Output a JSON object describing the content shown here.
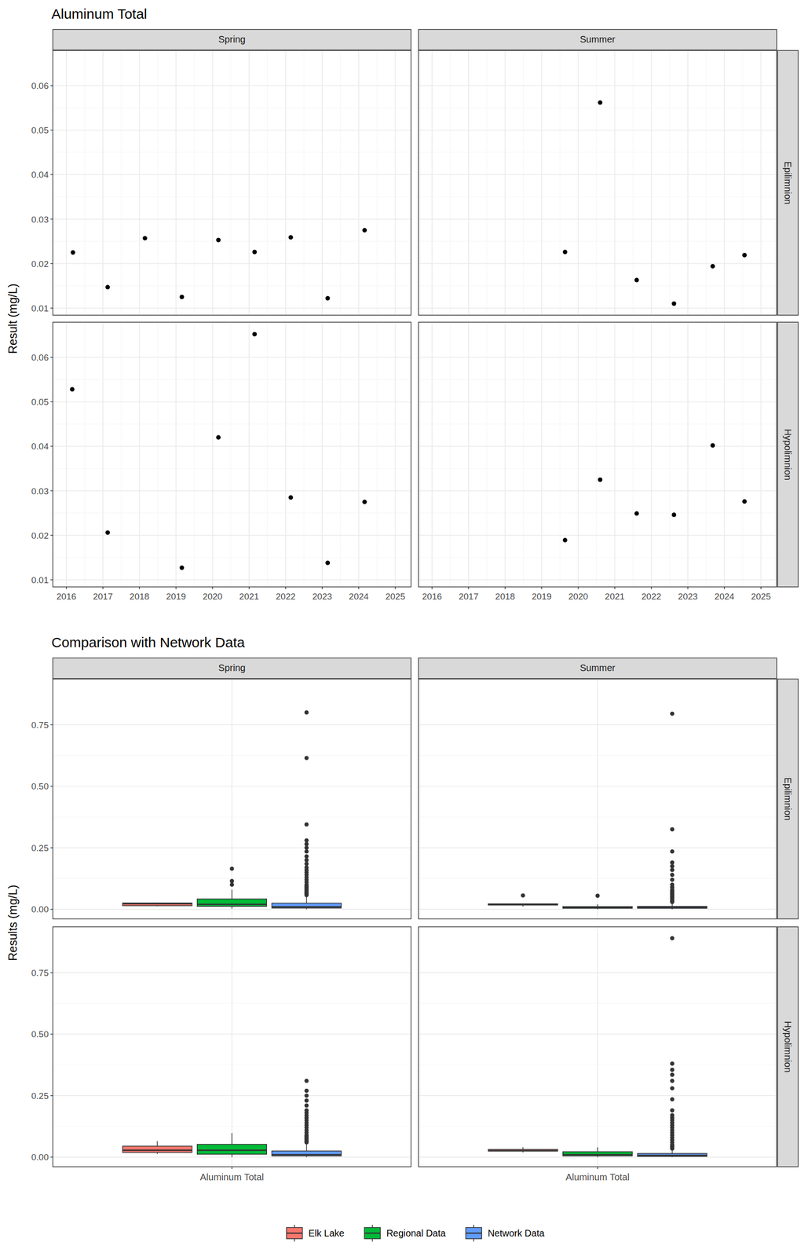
{
  "chart_data": [
    {
      "type": "scatter",
      "title": "Aluminum Total",
      "y_label": "Result (mg/L)",
      "facet_columns": [
        "Spring",
        "Summer"
      ],
      "facet_rows": [
        "Epilimnion",
        "Hypolimnion"
      ],
      "xlim": [
        2015.63,
        2025.43
      ],
      "xticks": [
        2016,
        2017,
        2018,
        2019,
        2020,
        2021,
        2022,
        2023,
        2024,
        2025
      ],
      "ylim": [
        0.0084,
        0.0679
      ],
      "yticks": [
        0.01,
        0.02,
        0.03,
        0.04,
        0.05,
        0.06
      ],
      "grid": true,
      "marker": "circle",
      "color": "#000000",
      "panels": [
        [
          {
            "x": [
              2016.18,
              2017.13,
              2018.15,
              2019.16,
              2020.16,
              2021.15,
              2022.14,
              2023.15,
              2024.16
            ],
            "values": [
              0.0225,
              0.0147,
              0.0257,
              0.0125,
              0.0253,
              0.0226,
              0.0259,
              0.0122,
              0.0275
            ]
          },
          {
            "x": [
              2019.64,
              2020.6,
              2021.6,
              2022.62,
              2023.68,
              2024.55
            ],
            "values": [
              0.0226,
              0.0562,
              0.0163,
              0.011,
              0.0194,
              0.0219
            ]
          }
        ],
        [
          {
            "x": [
              2016.16,
              2017.13,
              2019.16,
              2020.16,
              2021.15,
              2022.14,
              2023.15,
              2024.16
            ],
            "values": [
              0.0528,
              0.0206,
              0.0127,
              0.042,
              0.0652,
              0.0285,
              0.0138,
              0.0275
            ]
          },
          {
            "x": [
              2019.64,
              2020.6,
              2021.6,
              2022.62,
              2023.68,
              2024.55
            ],
            "values": [
              0.0189,
              0.0325,
              0.0249,
              0.0246,
              0.0402,
              0.0276
            ]
          }
        ]
      ]
    },
    {
      "type": "box",
      "title": "Comparison with Network Data",
      "y_label": "Results (mg/L)",
      "categories": [
        "Aluminum Total"
      ],
      "facet_columns": [
        "Spring",
        "Summer"
      ],
      "facet_rows": [
        "Epilimnion",
        "Hypolimnion"
      ],
      "ylim": [
        -0.039,
        0.936
      ],
      "yticks": [
        {
          "value": 0,
          "label": "0.00"
        },
        {
          "value": 0.25,
          "label": "0.25"
        },
        {
          "value": 0.5,
          "label": "0.50"
        },
        {
          "value": 0.75,
          "label": "0.75"
        }
      ],
      "grid": true,
      "legend": "bottom",
      "series": [
        {
          "name": "Elk Lake",
          "color": "#F8766D"
        },
        {
          "name": "Regional Data",
          "color": "#00BA38"
        },
        {
          "name": "Network Data",
          "color": "#619CFF"
        }
      ],
      "panels": [
        [
          {
            "boxes": [
              {
                "min": 0.0122,
                "q1": 0.0147,
                "median": 0.0226,
                "q3": 0.0257,
                "max": 0.0275,
                "outliers": []
              },
              {
                "min": 0.003,
                "q1": 0.012,
                "median": 0.02,
                "q3": 0.042,
                "max": 0.08,
                "outliers": [
                  0.1,
                  0.115,
                  0.165
                ]
              },
              {
                "min": 0.0,
                "q1": 0.005,
                "median": 0.01,
                "q3": 0.025,
                "max": 0.055,
                "outliers": [
                  0.058,
                  0.062,
                  0.066,
                  0.07,
                  0.075,
                  0.08,
                  0.085,
                  0.09,
                  0.095,
                  0.1,
                  0.11,
                  0.12,
                  0.13,
                  0.14,
                  0.15,
                  0.16,
                  0.17,
                  0.185,
                  0.2,
                  0.215,
                  0.235,
                  0.25,
                  0.265,
                  0.28,
                  0.345,
                  0.615,
                  0.8
                ]
              }
            ]
          },
          {
            "boxes": [
              {
                "min": 0.011,
                "q1": 0.0171,
                "median": 0.0207,
                "q3": 0.0224,
                "max": 0.0226,
                "outliers": [
                  0.0562
                ]
              },
              {
                "min": 0.0,
                "q1": 0.004,
                "median": 0.007,
                "q3": 0.011,
                "max": 0.02,
                "outliers": [
                  0.055
                ]
              },
              {
                "min": 0.0,
                "q1": 0.004,
                "median": 0.007,
                "q3": 0.012,
                "max": 0.025,
                "outliers": [
                  0.03,
                  0.035,
                  0.04,
                  0.045,
                  0.05,
                  0.055,
                  0.06,
                  0.065,
                  0.07,
                  0.075,
                  0.08,
                  0.09,
                  0.1,
                  0.12,
                  0.14,
                  0.16,
                  0.175,
                  0.19,
                  0.235,
                  0.325,
                  0.795
                ]
              }
            ]
          }
        ],
        [
          {
            "boxes": [
              {
                "min": 0.0127,
                "q1": 0.019,
                "median": 0.028,
                "q3": 0.0447,
                "max": 0.0652,
                "outliers": []
              },
              {
                "min": 0.0,
                "q1": 0.012,
                "median": 0.028,
                "q3": 0.052,
                "max": 0.098,
                "outliers": []
              },
              {
                "min": 0.0,
                "q1": 0.005,
                "median": 0.01,
                "q3": 0.025,
                "max": 0.055,
                "outliers": [
                  0.06,
                  0.065,
                  0.07,
                  0.075,
                  0.08,
                  0.085,
                  0.09,
                  0.1,
                  0.11,
                  0.12,
                  0.13,
                  0.14,
                  0.15,
                  0.16,
                  0.17,
                  0.18,
                  0.19,
                  0.21,
                  0.23,
                  0.25,
                  0.27,
                  0.31
                ]
              }
            ]
          },
          {
            "boxes": [
              {
                "min": 0.0189,
                "q1": 0.0247,
                "median": 0.0263,
                "q3": 0.0313,
                "max": 0.0402,
                "outliers": []
              },
              {
                "min": 0.0,
                "q1": 0.005,
                "median": 0.01,
                "q3": 0.022,
                "max": 0.04,
                "outliers": []
              },
              {
                "min": 0.0,
                "q1": 0.003,
                "median": 0.007,
                "q3": 0.015,
                "max": 0.03,
                "outliers": [
                  0.035,
                  0.04,
                  0.045,
                  0.05,
                  0.06,
                  0.07,
                  0.08,
                  0.09,
                  0.1,
                  0.11,
                  0.12,
                  0.13,
                  0.14,
                  0.15,
                  0.16,
                  0.17,
                  0.19,
                  0.235,
                  0.28,
                  0.31,
                  0.335,
                  0.355,
                  0.38,
                  0.89
                ]
              }
            ]
          }
        ]
      ]
    }
  ]
}
